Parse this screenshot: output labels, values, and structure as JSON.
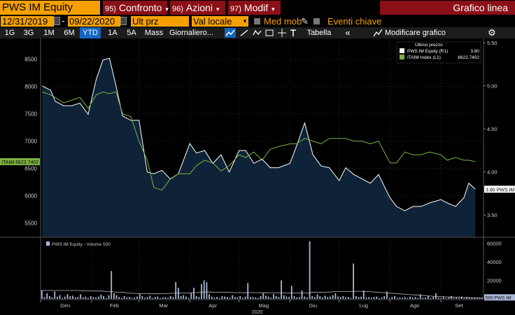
{
  "header": {
    "ticker": "PWS IM Equity",
    "menus": [
      {
        "num": "95)",
        "label": "Confronto",
        "caret": "▾"
      },
      {
        "num": "96)",
        "label": "Azioni",
        "caret": "▾"
      },
      {
        "num": "97)",
        "label": "Modif",
        "caret": "▾"
      }
    ],
    "title": "Grafico linea"
  },
  "toolbar": {
    "start_date": "12/31/2019",
    "date_separator": "-",
    "end_date": "09/22/2020",
    "price_field": "Ult prz",
    "currency_field": "Val locale",
    "moving_avg_label": "Med mob",
    "key_events_label": "Eventi chiave"
  },
  "range_tabs": [
    "1G",
    "3G",
    "1M",
    "6M",
    "YTD",
    "1A",
    "5A",
    "Mass"
  ],
  "active_tab": "YTD",
  "periodicity": "Giornaliero",
  "periodicity_suffix": "...",
  "table_label": "Tabella",
  "edit_chart_label": "Modificare grafico",
  "colors": {
    "orange": "#f5a000",
    "darkred": "#8b0f16",
    "price_line": "#ffffff",
    "area_fill": "#0f2338",
    "index_line": "#7cb342",
    "volume_bar": "#aab8d8",
    "active_tab": "#1565c0"
  },
  "chart_data": {
    "type": "line",
    "legend": {
      "header": "Ultimo prezzo",
      "entries": [
        {
          "name": "PWS IM Equity  (R1)",
          "value": "3.80",
          "color": "#ffffff"
        },
        {
          "name": "ITAIM Index  (L1)",
          "value": "6622.7402",
          "color": "#7cb342"
        }
      ]
    },
    "left_axis": {
      "ticks": [
        "8500",
        "8000",
        "7500",
        "7000",
        "6500",
        "6000",
        "5500"
      ],
      "tick_values": [
        8500,
        8000,
        7500,
        7000,
        6500,
        6000,
        5500
      ],
      "range": [
        5250,
        8880
      ]
    },
    "right_axis": {
      "ticks": [
        "5.50",
        "5.00",
        "4.50",
        "4.00",
        "3.50"
      ],
      "tick_values": [
        5.5,
        5.0,
        4.5,
        4.0,
        3.5
      ],
      "range": [
        3.25,
        5.55
      ]
    },
    "left_last_label": "ITAIM 6622.7402",
    "left_last_value": 6622.7402,
    "right_last_label": "3.80 PWS IM",
    "right_last_value": 3.8,
    "x_months": [
      "Gen",
      "Feb",
      "Mar",
      "Apr",
      "Mag",
      "Giu",
      "Lug",
      "Ago",
      "Set"
    ],
    "x_year": "2020",
    "series": [
      {
        "name": "PWS IM Equity",
        "axis": "right",
        "dates": [
          "2020-01-02",
          "2020-01-07",
          "2020-01-10",
          "2020-01-15",
          "2020-01-20",
          "2020-01-25",
          "2020-01-30",
          "2020-02-04",
          "2020-02-08",
          "2020-02-12",
          "2020-02-16",
          "2020-02-20",
          "2020-02-25",
          "2020-03-01",
          "2020-03-06",
          "2020-03-10",
          "2020-03-15",
          "2020-03-20",
          "2020-03-25",
          "2020-04-01",
          "2020-04-05",
          "2020-04-10",
          "2020-04-15",
          "2020-04-20",
          "2020-04-25",
          "2020-05-01",
          "2020-05-05",
          "2020-05-10",
          "2020-05-15",
          "2020-05-20",
          "2020-05-25",
          "2020-06-01",
          "2020-06-05",
          "2020-06-10",
          "2020-06-15",
          "2020-06-20",
          "2020-06-25",
          "2020-07-01",
          "2020-07-05",
          "2020-07-10",
          "2020-07-15",
          "2020-07-20",
          "2020-07-25",
          "2020-08-01",
          "2020-08-05",
          "2020-08-10",
          "2020-08-15",
          "2020-08-20",
          "2020-08-25",
          "2020-09-01",
          "2020-09-05",
          "2020-09-10",
          "2020-09-15",
          "2020-09-18",
          "2020-09-22"
        ],
        "values": [
          5.0,
          4.95,
          4.82,
          4.77,
          4.77,
          4.8,
          4.67,
          5.08,
          5.3,
          5.32,
          5.0,
          4.65,
          4.6,
          4.6,
          4.0,
          3.98,
          4.02,
          3.92,
          3.98,
          4.33,
          4.22,
          4.25,
          4.1,
          4.2,
          4.0,
          4.25,
          4.25,
          4.1,
          4.15,
          4.05,
          4.05,
          4.1,
          4.3,
          4.57,
          4.2,
          4.07,
          4.05,
          3.9,
          4.05,
          3.97,
          3.92,
          3.87,
          3.97,
          3.7,
          3.6,
          3.55,
          3.6,
          3.6,
          3.64,
          3.68,
          3.64,
          3.6,
          3.7,
          3.87,
          3.8
        ]
      },
      {
        "name": "ITAIM Index",
        "axis": "left",
        "dates": [
          "2020-01-02",
          "2020-01-07",
          "2020-01-10",
          "2020-01-15",
          "2020-01-20",
          "2020-01-25",
          "2020-01-30",
          "2020-02-04",
          "2020-02-08",
          "2020-02-12",
          "2020-02-16",
          "2020-02-20",
          "2020-02-25",
          "2020-03-01",
          "2020-03-06",
          "2020-03-10",
          "2020-03-15",
          "2020-03-20",
          "2020-03-25",
          "2020-04-01",
          "2020-04-05",
          "2020-04-10",
          "2020-04-15",
          "2020-04-20",
          "2020-04-25",
          "2020-05-01",
          "2020-05-05",
          "2020-05-10",
          "2020-05-15",
          "2020-05-20",
          "2020-05-25",
          "2020-06-01",
          "2020-06-05",
          "2020-06-10",
          "2020-06-15",
          "2020-06-20",
          "2020-06-25",
          "2020-07-01",
          "2020-07-05",
          "2020-07-10",
          "2020-07-15",
          "2020-07-20",
          "2020-07-25",
          "2020-08-01",
          "2020-08-05",
          "2020-08-10",
          "2020-08-15",
          "2020-08-20",
          "2020-08-25",
          "2020-09-01",
          "2020-09-05",
          "2020-09-10",
          "2020-09-15",
          "2020-09-18",
          "2020-09-22"
        ],
        "values": [
          7900,
          7850,
          7800,
          7700,
          7750,
          7800,
          7600,
          7850,
          7900,
          7870,
          7900,
          7500,
          7450,
          7000,
          6650,
          6150,
          6100,
          6300,
          6400,
          6400,
          6550,
          6650,
          6600,
          6450,
          6550,
          6750,
          6700,
          6800,
          6650,
          6850,
          6900,
          6950,
          6950,
          7050,
          7000,
          6950,
          7050,
          7050,
          7050,
          7000,
          7000,
          6950,
          7000,
          6600,
          6600,
          6800,
          6750,
          6750,
          6800,
          6750,
          6650,
          6700,
          6650,
          6650,
          6622.74
        ]
      }
    ],
    "volume": {
      "legend": "PWS IM Equity - Volume 500",
      "ticks": [
        "60000",
        "40000",
        "20000"
      ],
      "tick_values": [
        60000,
        40000,
        20000
      ],
      "range": [
        0,
        64000
      ],
      "last_label": "500 PWS IM",
      "last_value": 500,
      "values": [
        9000,
        2000,
        6000,
        3000,
        1500,
        8000,
        2500,
        4000,
        1000,
        2500,
        5000,
        3000,
        3500,
        1500,
        2000,
        5000,
        1500,
        2500,
        1000,
        3000,
        2000,
        1500,
        2500,
        4500,
        3000,
        1000,
        4000,
        30000,
        6000,
        4000,
        2000,
        1000,
        3000,
        1500,
        2000,
        1000,
        1500,
        2500,
        5000,
        3000,
        1200,
        2000,
        3500,
        1000,
        2000,
        2500,
        1000,
        1500,
        2000,
        1200,
        3000,
        2000,
        18000,
        12000,
        3000,
        4000,
        2500,
        1000,
        6000,
        12000,
        3000,
        2000,
        16000,
        20000,
        18000,
        5000,
        2500,
        1500,
        2000,
        1000,
        3000,
        2500,
        2000,
        1200,
        4000,
        2000,
        1500,
        3000,
        1000,
        2500,
        17000,
        2000,
        2000,
        1500,
        1000,
        3000,
        6000,
        3500,
        2500,
        1200,
        5000,
        3000,
        2000,
        20000,
        4000,
        2500,
        2000,
        14000,
        3000,
        1500,
        2000,
        9000,
        2500,
        1500,
        62000,
        3000,
        2000,
        5000,
        3000,
        1500,
        3500,
        2000,
        2500,
        4000,
        6000,
        2500,
        2000,
        3000,
        1500,
        2000,
        1000,
        38000,
        3000,
        2000,
        2500,
        9000,
        1500,
        2000,
        1200,
        2000,
        2500,
        1000,
        1500,
        3000,
        8000,
        1000,
        2000,
        3000,
        1000,
        1500,
        1200,
        2000,
        1000,
        2500,
        1500,
        2000,
        1000,
        5000,
        1200,
        1500,
        3000,
        1000,
        2000,
        6000,
        1500,
        1000,
        2000,
        1000,
        1500,
        3000,
        1000,
        1500,
        1000,
        2500,
        1000,
        2000,
        1200,
        1000,
        1500,
        800,
        1200,
        500
      ],
      "avg_line": [
        9000,
        9000,
        9000,
        9000,
        9000,
        9000,
        9000,
        9000,
        9000,
        9000,
        9000,
        9000,
        9000,
        9000,
        9000,
        9000,
        8800,
        8800,
        8700,
        8600,
        8500,
        8500,
        8500,
        8500,
        8400,
        8000,
        8000,
        8000,
        7500,
        7200,
        7200,
        7100,
        7000,
        6500,
        6200,
        6000,
        6000,
        5900,
        5800,
        5700,
        5600,
        5600,
        5500,
        5500,
        5500,
        5500,
        5600,
        5600,
        5700,
        5800,
        6000,
        6100,
        6200,
        6300,
        6400,
        6500,
        6500,
        6500,
        6600,
        6700,
        6800,
        7000,
        7200,
        7400,
        7400,
        7400,
        7300,
        7200,
        7200,
        7100,
        7000,
        7000,
        7000,
        6900,
        6800,
        6800,
        6800,
        6700,
        6600,
        6600,
        6800,
        6800,
        6800,
        6700,
        6600,
        6600,
        6600,
        6600,
        6500,
        6400,
        6400,
        6400,
        6300,
        6500,
        6500,
        6400,
        6300,
        6400,
        6400,
        6300,
        6200,
        6300,
        6300,
        6200,
        7000,
        7000,
        7000,
        7000,
        7000,
        7000,
        7200,
        7400,
        7600,
        7800,
        8000,
        8000,
        8000,
        8000,
        8000,
        8000,
        8000,
        8200,
        8200,
        8200,
        8000,
        8000,
        7800,
        7600,
        7400,
        7200,
        7000,
        6800,
        6600,
        6400,
        6200,
        6000,
        5800,
        5600,
        5400,
        5200,
        5000,
        4800,
        4600,
        4400,
        4200,
        4000,
        3800,
        3600,
        3400,
        3200,
        3000,
        2800,
        2600,
        2500,
        2400,
        2300,
        2200,
        2100,
        2000,
        1900,
        1800,
        1700,
        1600,
        1500,
        1400,
        1300,
        1200,
        1100,
        1000,
        900,
        800
      ]
    }
  }
}
